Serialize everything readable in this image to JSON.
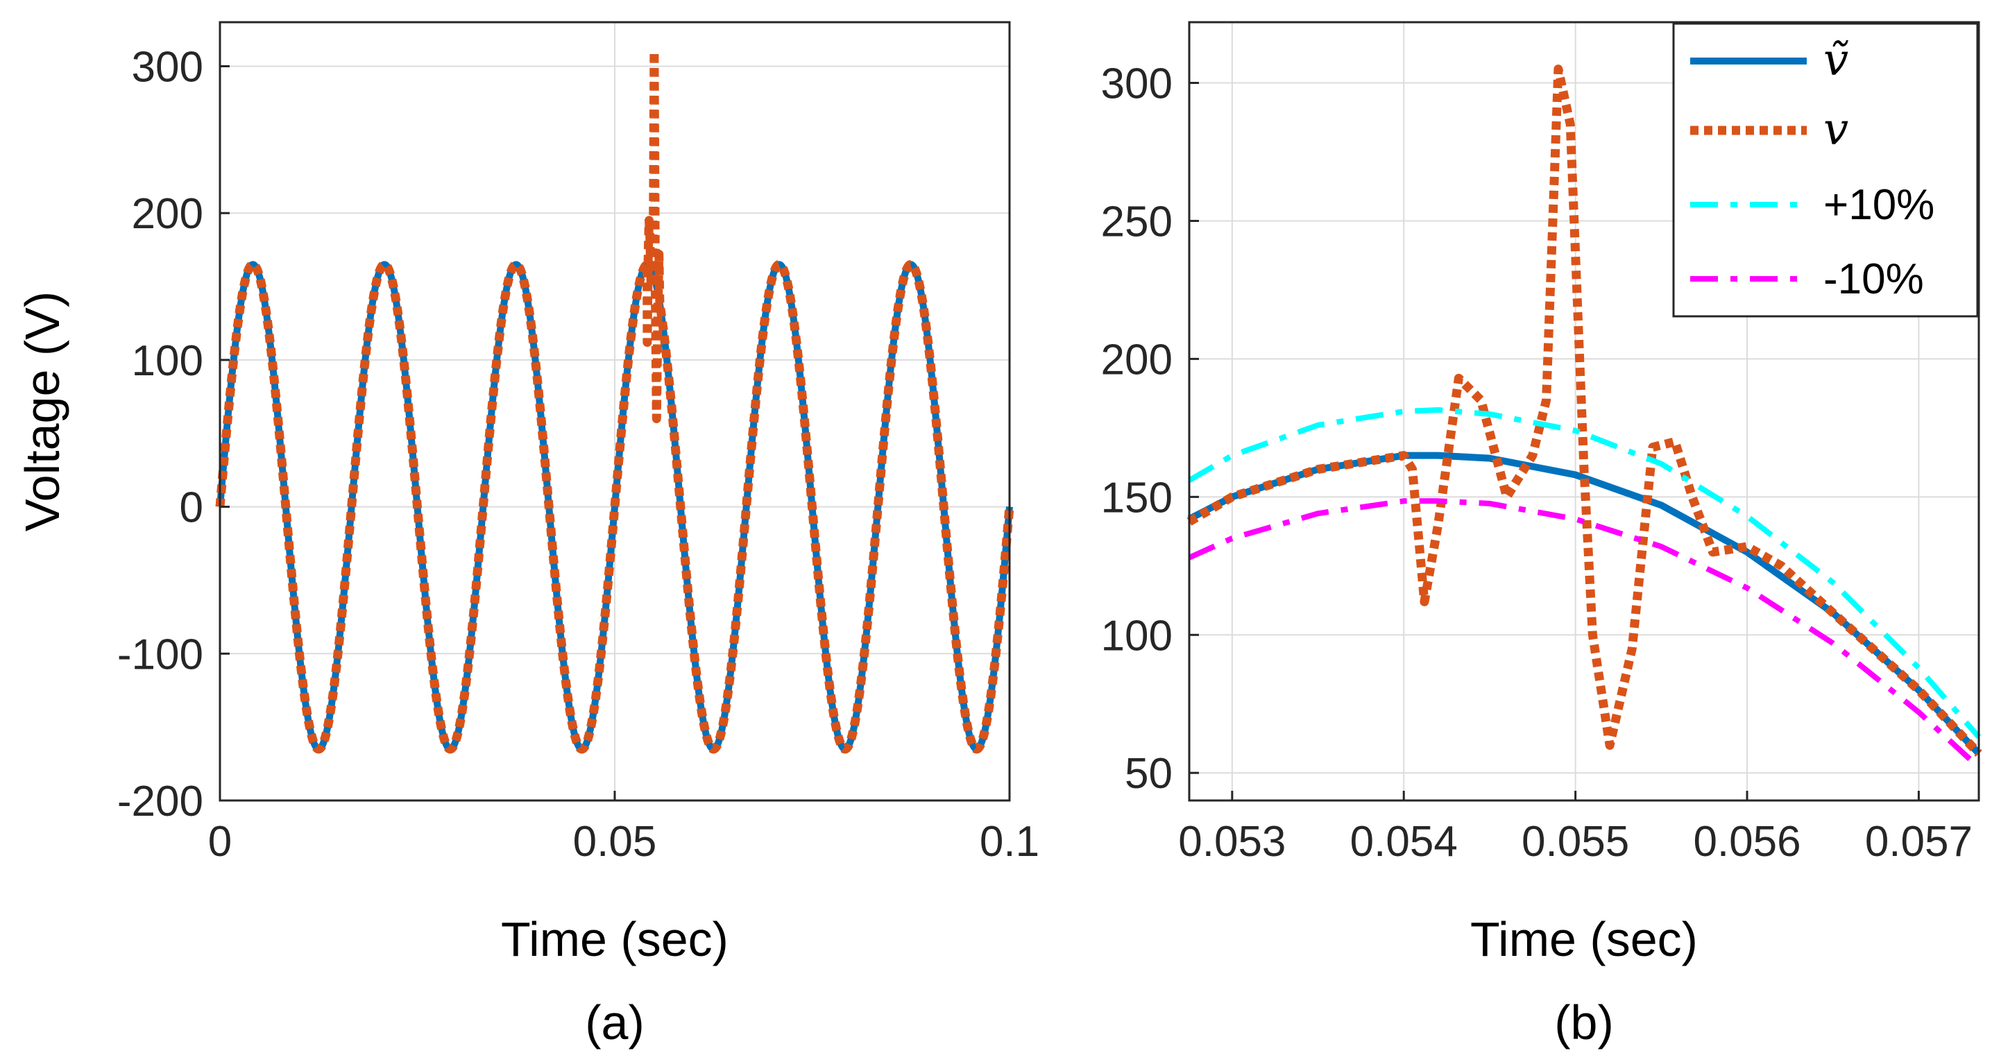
{
  "chart_data": [
    {
      "panel": "(a)",
      "type": "line",
      "xlabel": "Time (sec)",
      "ylabel": "Voltage (V)",
      "xlim": [
        0,
        0.1
      ],
      "ylim": [
        -200,
        330
      ],
      "xticks": [
        0,
        0.05,
        0.1
      ],
      "xtick_labels": [
        "0",
        "0.05",
        "0.1"
      ],
      "yticks": [
        -200,
        -100,
        0,
        100,
        200,
        300
      ],
      "ytick_labels": [
        "-200",
        "-100",
        "0",
        "100",
        "200",
        "300"
      ],
      "grid": true,
      "series": [
        {
          "name": "v~",
          "style": "solid",
          "color": "#0072BD",
          "function": "sine",
          "amplitude": 165,
          "frequency_hz": 60,
          "x_range": [
            0,
            0.1
          ]
        },
        {
          "name": "v",
          "style": "dotted",
          "color": "#D95319",
          "function": "sine_with_transient",
          "amplitude": 165,
          "frequency_hz": 60,
          "x_range": [
            0,
            0.1
          ],
          "transient": {
            "x": [
              0.0541,
              0.05412,
              0.05425,
              0.05435,
              0.05445,
              0.0546,
              0.05475,
              0.0549,
              0.055,
              0.05515,
              0.0553,
              0.05545,
              0.0556,
              0.0557
            ],
            "y": [
              165,
              112,
              175,
              195,
              185,
              150,
              165,
              200,
              310,
              140,
              60,
              130,
              172,
              140
            ]
          }
        }
      ]
    },
    {
      "panel": "(b)",
      "type": "line",
      "xlabel": "Time (sec)",
      "xlim": [
        0.05275,
        0.05735
      ],
      "ylim": [
        40,
        322
      ],
      "xticks": [
        0.053,
        0.054,
        0.055,
        0.056,
        0.057
      ],
      "xtick_labels": [
        "0.053",
        "0.054",
        "0.055",
        "0.056",
        "0.057"
      ],
      "yticks": [
        50,
        100,
        150,
        200,
        250,
        300
      ],
      "ytick_labels": [
        "50",
        "100",
        "150",
        "200",
        "250",
        "300"
      ],
      "grid": true,
      "legend_position": "top-right",
      "series": [
        {
          "name": "v~",
          "legend_label": "ṽ",
          "style": "solid",
          "color": "#0072BD",
          "x": [
            0.05275,
            0.053,
            0.0535,
            0.054,
            0.0542,
            0.0545,
            0.055,
            0.0555,
            0.056,
            0.0565,
            0.057,
            0.05735
          ],
          "y": [
            142,
            150,
            160,
            165,
            165,
            164,
            158,
            147,
            130,
            108,
            80,
            57
          ]
        },
        {
          "name": "v",
          "legend_label": "v",
          "style": "dotted",
          "color": "#D95319",
          "x": [
            0.05275,
            0.053,
            0.0535,
            0.054,
            0.05405,
            0.05412,
            0.0542,
            0.05432,
            0.05445,
            0.0546,
            0.05475,
            0.05483,
            0.0549,
            0.05497,
            0.05505,
            0.0551,
            0.0552,
            0.05533,
            0.05545,
            0.05558,
            0.05568,
            0.0558,
            0.056,
            0.0562,
            0.0565,
            0.057,
            0.05735
          ],
          "y": [
            141,
            150,
            160,
            165,
            160,
            112,
            140,
            193,
            185,
            150,
            165,
            185,
            305,
            285,
            160,
            100,
            60,
            95,
            168,
            170,
            150,
            130,
            132,
            125,
            108,
            80,
            57
          ]
        },
        {
          "name": "+10%",
          "legend_label": "+10%",
          "style": "dashed",
          "color": "#00FFFF",
          "x": [
            0.05275,
            0.053,
            0.0535,
            0.054,
            0.0542,
            0.0545,
            0.055,
            0.0555,
            0.056,
            0.0565,
            0.057,
            0.05735
          ],
          "y": [
            156,
            165,
            176,
            181,
            181.5,
            180,
            174,
            162,
            143,
            119,
            88,
            63
          ]
        },
        {
          "name": "-10%",
          "legend_label": "-10%",
          "style": "dashed",
          "color": "#FF00FF",
          "x": [
            0.05275,
            0.053,
            0.0535,
            0.054,
            0.0542,
            0.0545,
            0.055,
            0.0555,
            0.056,
            0.0565,
            0.057,
            0.05735
          ],
          "y": [
            128,
            135,
            144,
            148.5,
            148.5,
            147.6,
            142,
            132,
            117,
            97,
            72,
            52
          ]
        }
      ]
    }
  ],
  "labels": {
    "panel_a": "(a)",
    "panel_b": "(b)",
    "legend": [
      "ṽ",
      "v",
      "+10%",
      "-10%"
    ]
  },
  "colors": {
    "blue": "#0072BD",
    "orange": "#D95319",
    "cyan": "#00FFFF",
    "magenta": "#FF00FF",
    "axis": "#262626",
    "grid": "#dcdcdc"
  }
}
